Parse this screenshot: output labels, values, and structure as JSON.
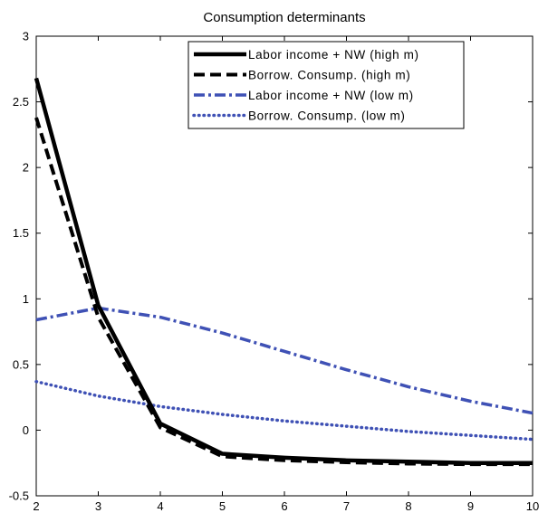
{
  "chart_data": {
    "type": "line",
    "title": "Consumption determinants",
    "xlabel": "",
    "ylabel": "",
    "xlim": [
      2,
      10
    ],
    "ylim": [
      -0.5,
      3
    ],
    "xticks": [
      2,
      3,
      4,
      5,
      6,
      7,
      8,
      9,
      10
    ],
    "yticks": [
      3,
      2.5,
      2,
      1.5,
      1,
      0.5,
      0,
      -0.5
    ],
    "ytick_labels": [
      "3",
      "2.5",
      "2",
      "1.5",
      "1",
      "0.5",
      "0",
      "-0.5"
    ],
    "legend_position": "top-right",
    "x": [
      2,
      3,
      4,
      5,
      6,
      7,
      8,
      9,
      10
    ],
    "series": [
      {
        "name": "Labor income + NW (high m)",
        "values": [
          2.68,
          0.95,
          0.05,
          -0.18,
          -0.21,
          -0.23,
          -0.24,
          -0.25,
          -0.25
        ],
        "color": "#000000",
        "style": "solid"
      },
      {
        "name": "Borrow. Consump. (high m)",
        "values": [
          2.38,
          0.86,
          0.02,
          -0.2,
          -0.23,
          -0.245,
          -0.255,
          -0.26,
          -0.26
        ],
        "color": "#000000",
        "style": "dashed"
      },
      {
        "name": "Labor income + NW (low m)",
        "values": [
          0.84,
          0.93,
          0.86,
          0.74,
          0.6,
          0.46,
          0.33,
          0.22,
          0.13
        ],
        "color": "#3f51b5",
        "style": "dashdot"
      },
      {
        "name": "Borrow. Consump. (low m)",
        "values": [
          0.37,
          0.26,
          0.18,
          0.12,
          0.07,
          0.03,
          -0.01,
          -0.04,
          -0.07
        ],
        "color": "#3f51b5",
        "style": "dotted"
      }
    ]
  }
}
